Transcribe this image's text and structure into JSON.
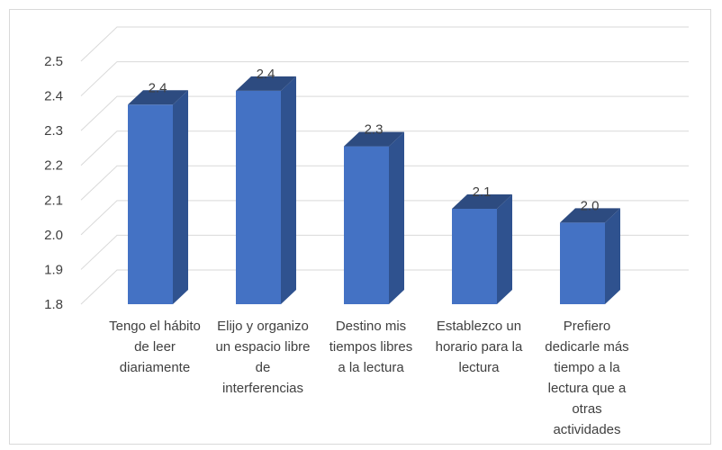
{
  "chart_data": {
    "type": "bar",
    "style": "3d-column",
    "categories": [
      [
        "Tengo el hábito",
        "de leer",
        "diariamente"
      ],
      [
        "Elijo y organizo",
        "un espacio libre",
        "de",
        "interferencias"
      ],
      [
        "Destino mis",
        "tiempos libres",
        "a la lectura"
      ],
      [
        "Establezco un",
        "horario para la",
        "lectura"
      ],
      [
        "Prefiero",
        "dedicarle más",
        "tiempo a la",
        "lectura que a",
        "otras",
        "actividades"
      ]
    ],
    "values": [
      2.38,
      2.42,
      2.26,
      2.08,
      2.04
    ],
    "data_labels": [
      "2.4",
      "2.4",
      "2.3",
      "2.1",
      "2.0"
    ],
    "y_ticks": [
      "1.8",
      "1.9",
      "2.0",
      "2.1",
      "2.2",
      "2.3",
      "2.4",
      "2.5"
    ],
    "ylim": [
      1.8,
      2.5
    ],
    "grid": true,
    "colors": {
      "front": "#4472c4",
      "side": "#2f528f",
      "top": "#2d4b80",
      "grid": "#d9d9d9",
      "text": "#404040"
    }
  }
}
